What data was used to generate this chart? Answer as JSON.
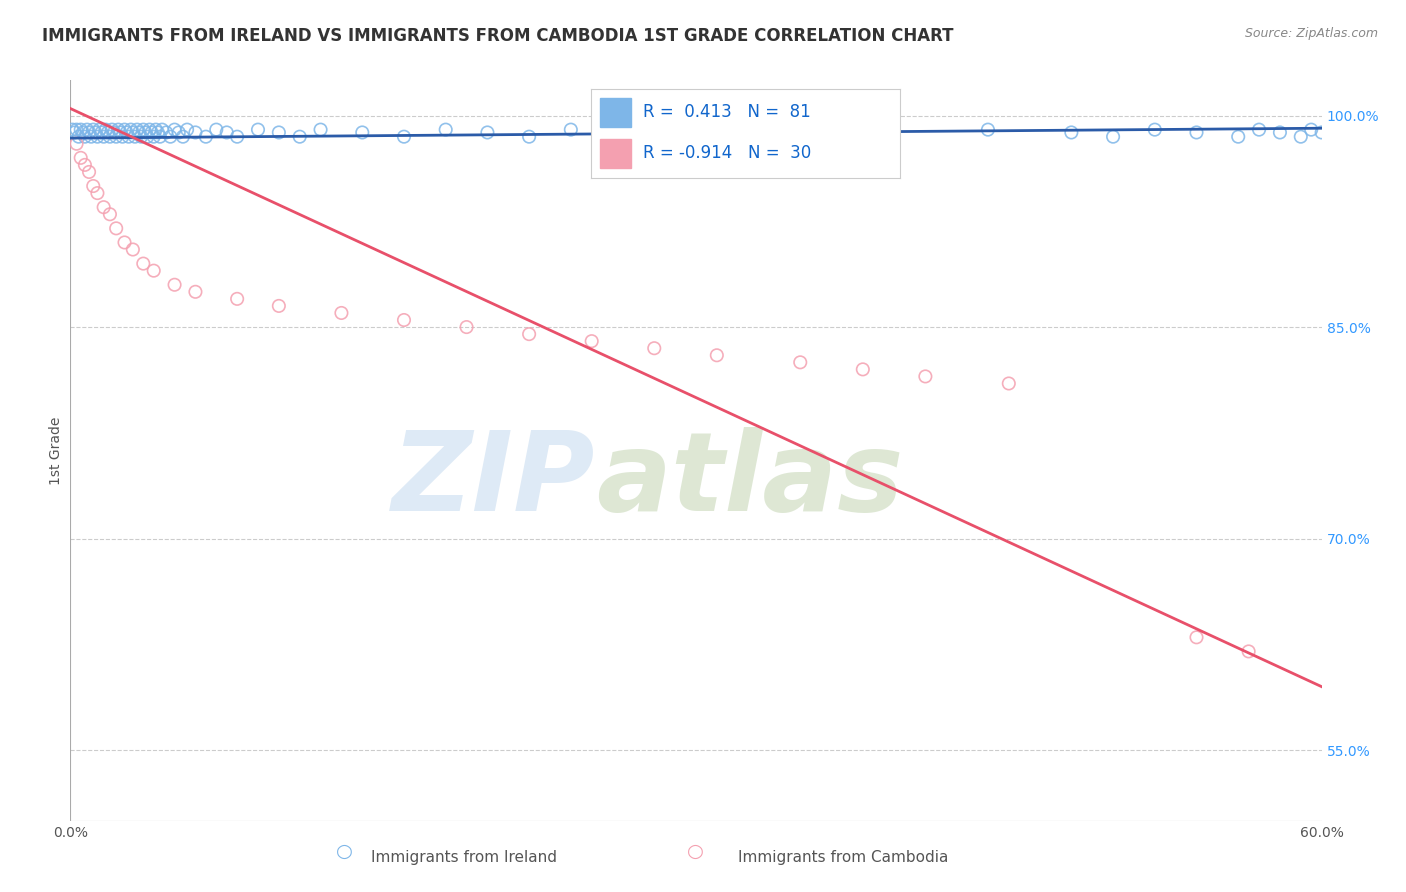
{
  "title": "IMMIGRANTS FROM IRELAND VS IMMIGRANTS FROM CAMBODIA 1ST GRADE CORRELATION CHART",
  "source_text": "Source: ZipAtlas.com",
  "ylabel": "1st Grade",
  "xlim": [
    0.0,
    0.6
  ],
  "ylim": [
    0.5,
    1.025
  ],
  "yticks": [
    0.55,
    0.7,
    0.85,
    1.0
  ],
  "ytick_labels": [
    "55.0%",
    "70.0%",
    "85.0%",
    "100.0%"
  ],
  "xticks": [
    0.0,
    0.1,
    0.2,
    0.3,
    0.4,
    0.5,
    0.6
  ],
  "xtick_labels": [
    "0.0%",
    "",
    "",
    "",
    "",
    "",
    "60.0%"
  ],
  "ireland_R": 0.413,
  "ireland_N": 81,
  "cambodia_R": -0.914,
  "cambodia_N": 30,
  "ireland_color": "#7EB6E8",
  "cambodia_color": "#F4A0B0",
  "ireland_trend_color": "#2B5BA8",
  "cambodia_trend_color": "#E8506A",
  "background_color": "#FFFFFF",
  "grid_color": "#CCCCCC",
  "title_color": "#333333",
  "ireland_x": [
    0.001,
    0.002,
    0.003,
    0.004,
    0.005,
    0.006,
    0.007,
    0.008,
    0.009,
    0.01,
    0.011,
    0.012,
    0.013,
    0.014,
    0.015,
    0.016,
    0.017,
    0.018,
    0.019,
    0.02,
    0.021,
    0.022,
    0.023,
    0.024,
    0.025,
    0.026,
    0.027,
    0.028,
    0.029,
    0.03,
    0.031,
    0.032,
    0.033,
    0.034,
    0.035,
    0.036,
    0.037,
    0.038,
    0.039,
    0.04,
    0.041,
    0.042,
    0.043,
    0.044,
    0.046,
    0.048,
    0.05,
    0.052,
    0.054,
    0.056,
    0.06,
    0.065,
    0.07,
    0.075,
    0.08,
    0.09,
    0.1,
    0.11,
    0.12,
    0.14,
    0.16,
    0.18,
    0.2,
    0.22,
    0.24,
    0.27,
    0.3,
    0.33,
    0.36,
    0.39,
    0.44,
    0.48,
    0.5,
    0.52,
    0.54,
    0.56,
    0.57,
    0.58,
    0.59,
    0.595,
    0.6
  ],
  "ireland_y": [
    0.99,
    0.988,
    0.99,
    0.985,
    0.99,
    0.988,
    0.985,
    0.99,
    0.988,
    0.985,
    0.99,
    0.988,
    0.985,
    0.99,
    0.988,
    0.985,
    0.99,
    0.988,
    0.985,
    0.99,
    0.988,
    0.985,
    0.99,
    0.988,
    0.985,
    0.99,
    0.988,
    0.985,
    0.99,
    0.988,
    0.985,
    0.99,
    0.988,
    0.985,
    0.99,
    0.988,
    0.985,
    0.99,
    0.988,
    0.985,
    0.99,
    0.988,
    0.985,
    0.99,
    0.988,
    0.985,
    0.99,
    0.988,
    0.985,
    0.99,
    0.988,
    0.985,
    0.99,
    0.988,
    0.985,
    0.99,
    0.988,
    0.985,
    0.99,
    0.988,
    0.985,
    0.99,
    0.988,
    0.985,
    0.99,
    0.988,
    0.985,
    0.99,
    0.988,
    0.985,
    0.99,
    0.988,
    0.985,
    0.99,
    0.988,
    0.985,
    0.99,
    0.988,
    0.985,
    0.99,
    0.988
  ],
  "cambodia_x": [
    0.003,
    0.005,
    0.007,
    0.009,
    0.011,
    0.013,
    0.016,
    0.019,
    0.022,
    0.026,
    0.03,
    0.035,
    0.04,
    0.05,
    0.06,
    0.08,
    0.1,
    0.13,
    0.16,
    0.19,
    0.22,
    0.25,
    0.28,
    0.31,
    0.35,
    0.38,
    0.41,
    0.45,
    0.54,
    0.565
  ],
  "cambodia_y": [
    0.98,
    0.97,
    0.965,
    0.96,
    0.95,
    0.945,
    0.935,
    0.93,
    0.92,
    0.91,
    0.905,
    0.895,
    0.89,
    0.88,
    0.875,
    0.87,
    0.865,
    0.86,
    0.855,
    0.85,
    0.845,
    0.84,
    0.835,
    0.83,
    0.825,
    0.82,
    0.815,
    0.81,
    0.63,
    0.62
  ],
  "cambodia_trend_x": [
    0.0,
    0.6
  ],
  "cambodia_trend_y": [
    1.005,
    0.595
  ]
}
